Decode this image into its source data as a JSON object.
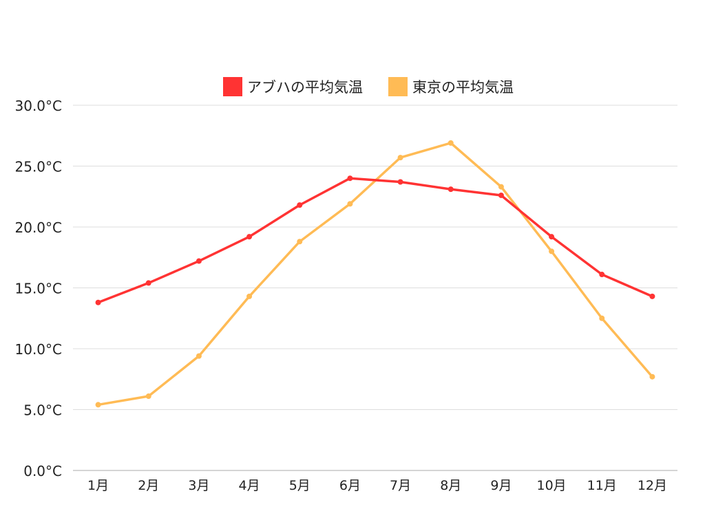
{
  "chart_data": {
    "type": "line",
    "title": "",
    "xlabel": "",
    "ylabel": "",
    "categories": [
      "1月",
      "2月",
      "3月",
      "4月",
      "5月",
      "6月",
      "7月",
      "8月",
      "9月",
      "10月",
      "11月",
      "12月"
    ],
    "ylim": [
      0,
      30
    ],
    "yticks": [
      0,
      5,
      10,
      15,
      20,
      25,
      30
    ],
    "ytick_labels": [
      "0.0°C",
      "5.0°C",
      "10.0°C",
      "15.0°C",
      "20.0°C",
      "25.0°C",
      "30.0°C"
    ],
    "grid": true,
    "legend_position": "top-center",
    "series": [
      {
        "name": "アブハの平均気温",
        "color": "#ff3333",
        "values": [
          13.8,
          15.4,
          17.2,
          19.2,
          21.8,
          24.0,
          23.7,
          23.1,
          22.6,
          19.2,
          16.1,
          14.3
        ]
      },
      {
        "name": "東京の平均気温",
        "color": "#ffbb55",
        "values": [
          5.4,
          6.1,
          9.4,
          14.3,
          18.8,
          21.9,
          25.7,
          26.9,
          23.3,
          18.0,
          12.5,
          7.7
        ]
      }
    ]
  }
}
